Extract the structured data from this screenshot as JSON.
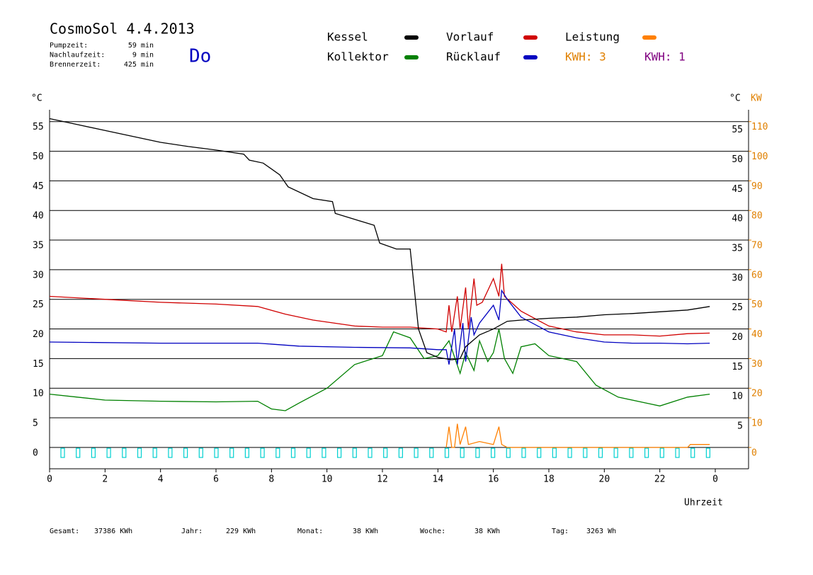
{
  "chart_data": {
    "type": "line",
    "title": "CosmoSol 4.4.2013",
    "info": [
      {
        "label": "Pumpzeit:",
        "value": "59 min"
      },
      {
        "label": "Nachlaufzeit:",
        "value": "9 min"
      },
      {
        "label": "Brennerzeit:",
        "value": "425 min"
      }
    ],
    "weekday": "Do",
    "y_label": "°C",
    "y_label_right": "°C",
    "y2_label": "KW",
    "x_label": "Uhrzeit",
    "xlim": [
      0,
      25.2
    ],
    "xticks": [
      0,
      2,
      4,
      6,
      8,
      10,
      12,
      14,
      16,
      18,
      20,
      22,
      {
        "value": 24,
        "label": "0"
      }
    ],
    "ylim": [
      -3.6,
      57
    ],
    "yticks": [
      0,
      5,
      10,
      15,
      20,
      25,
      30,
      35,
      40,
      45,
      50,
      55
    ],
    "y2lim": [
      -7.2,
      114
    ],
    "y2ticks": [
      0,
      10,
      20,
      30,
      40,
      50,
      60,
      70,
      80,
      90,
      100,
      110
    ],
    "grid": true,
    "series": [
      {
        "name": "Kessel",
        "color": "#000000",
        "x": [
          0,
          1,
          2,
          3,
          4,
          5,
          6,
          7,
          7.2,
          7.7,
          8.3,
          8.6,
          9.5,
          10.2,
          10.3,
          11,
          11.7,
          11.9,
          12.5,
          13,
          13.3,
          13.6,
          14,
          14.5,
          14.8,
          15,
          15.5,
          16,
          16.5,
          17,
          18,
          19,
          20,
          21,
          22,
          23,
          23.8
        ],
        "values": [
          55.5,
          54.5,
          53.5,
          52.5,
          51.5,
          50.8,
          50.2,
          49.5,
          48.5,
          48,
          46,
          44,
          42,
          41.5,
          39.5,
          38.5,
          37.5,
          34.5,
          33.5,
          33.5,
          20,
          16,
          15.2,
          14.8,
          15,
          17,
          19,
          20,
          21.3,
          21.5,
          21.8,
          22,
          22.4,
          22.6,
          22.9,
          23.2,
          23.8
        ]
      },
      {
        "name": "Kollektor",
        "color": "#008000",
        "x": [
          0,
          1,
          2,
          4,
          6,
          7.5,
          8,
          8.5,
          9,
          10,
          11,
          12,
          12.4,
          13,
          13.5,
          14,
          14.4,
          14.8,
          15,
          15.3,
          15.5,
          15.8,
          16,
          16.2,
          16.4,
          16.7,
          17,
          17.5,
          18,
          19,
          19.7,
          20.5,
          21.5,
          22,
          23,
          23.8
        ],
        "values": [
          9,
          8.5,
          8,
          7.8,
          7.7,
          7.8,
          6.5,
          6.2,
          7.5,
          10,
          14,
          15.5,
          19.5,
          18.5,
          15,
          15.5,
          18,
          12.5,
          16,
          13,
          18,
          14.5,
          16,
          20,
          15,
          12.5,
          17,
          17.5,
          15.5,
          14.5,
          10.5,
          8.5,
          7.5,
          7,
          8.5,
          9
        ]
      },
      {
        "name": "Vorlauf",
        "color": "#d00000",
        "x": [
          0,
          2,
          4,
          6,
          7.5,
          8.5,
          9.5,
          11,
          12,
          13,
          14,
          14.3,
          14.4,
          14.5,
          14.7,
          14.8,
          15,
          15.1,
          15.3,
          15.4,
          15.6,
          16,
          16.2,
          16.3,
          16.4,
          17,
          18,
          19,
          20,
          21,
          22,
          23,
          23.8
        ],
        "values": [
          25.5,
          25,
          24.5,
          24.2,
          23.8,
          22.5,
          21.5,
          20.5,
          20.3,
          20.3,
          20,
          19.5,
          24,
          19.5,
          25.5,
          20,
          27,
          20,
          28.5,
          24,
          24.5,
          28.5,
          25.5,
          31,
          25.5,
          23,
          20.5,
          19.5,
          19,
          19,
          18.8,
          19.2,
          19.3
        ]
      },
      {
        "name": "Rücklauf",
        "color": "#0000c0",
        "x": [
          0,
          4,
          7.5,
          9,
          11,
          13,
          14,
          14.3,
          14.4,
          14.6,
          14.7,
          14.9,
          15,
          15.2,
          15.3,
          15.5,
          16,
          16.2,
          16.3,
          16.5,
          17,
          18,
          19,
          20,
          21,
          22,
          23,
          23.8
        ],
        "values": [
          17.8,
          17.6,
          17.6,
          17.1,
          16.9,
          16.8,
          16.5,
          16.5,
          14,
          20,
          14,
          21,
          14.5,
          22,
          19,
          21,
          24,
          21.5,
          26.5,
          25,
          22,
          19.5,
          18.5,
          17.8,
          17.6,
          17.6,
          17.5,
          17.6
        ]
      },
      {
        "name": "Leistung",
        "color": "#ff8000",
        "axis": "y2",
        "x": [
          14.3,
          14.4,
          14.5,
          14.6,
          14.7,
          14.8,
          15,
          15.1,
          15.5,
          16,
          16.2,
          16.3,
          16.5,
          23,
          23.1,
          23.8
        ],
        "values": [
          0,
          7,
          0,
          0,
          8,
          1,
          7,
          1,
          2,
          1,
          7,
          1,
          0,
          0,
          1,
          1
        ]
      }
    ],
    "energy_labels": [
      {
        "text": "KWH: 3",
        "color": "#e08000"
      },
      {
        "text": "KWH: 1",
        "color": "#800080"
      }
    ],
    "footer": [
      {
        "label": "Gesamt:",
        "value": "37386 KWh"
      },
      {
        "label": "Jahr:",
        "value": "229 KWh"
      },
      {
        "label": "Monat:",
        "value": "38 KWh"
      },
      {
        "label": "Woche:",
        "value": "38 KWh"
      },
      {
        "label": "Tag:",
        "value": "3263 Wh"
      }
    ]
  }
}
